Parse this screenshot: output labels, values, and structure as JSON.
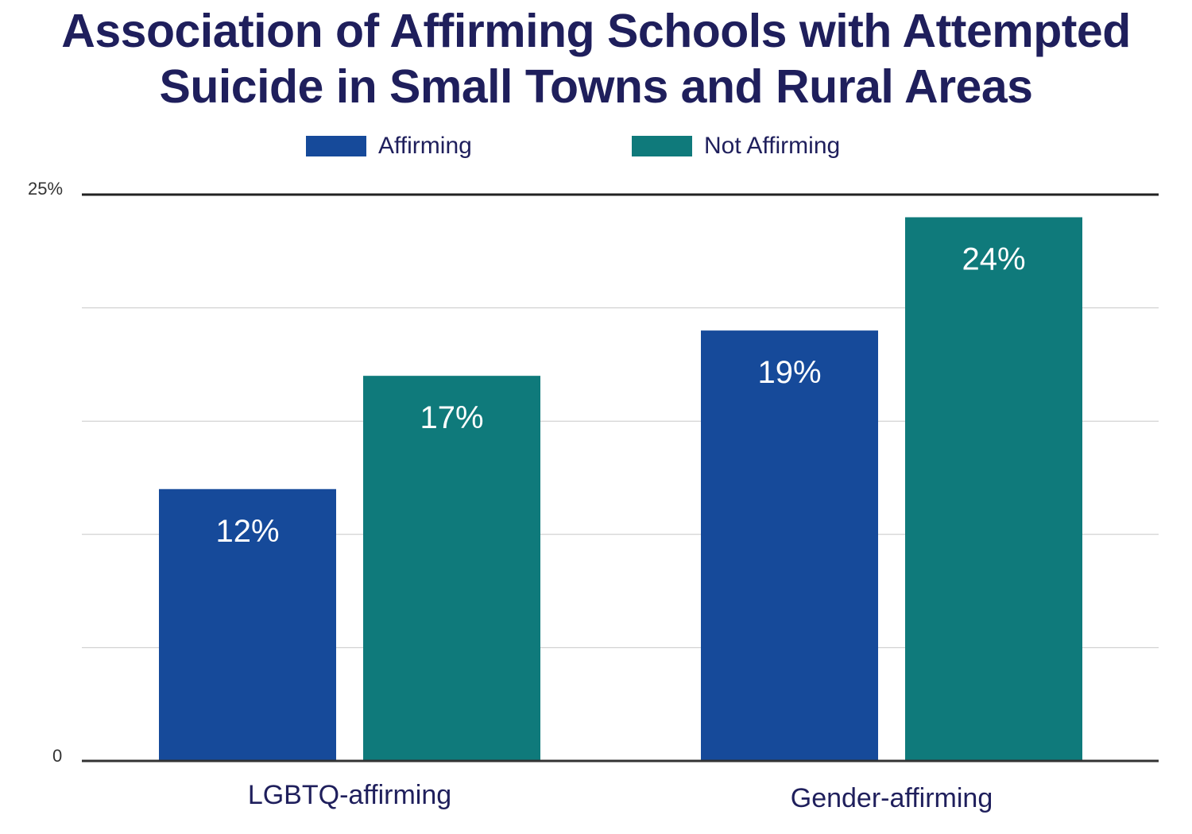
{
  "chart_data": {
    "type": "bar",
    "title": "Association of Affirming Schools with Attempted Suicide in Small Towns and Rural Areas",
    "title_lines": [
      "Association of Affirming Schools with Attempted",
      "Suicide in Small Towns and Rural Areas"
    ],
    "categories": [
      "LGBTQ-affirming",
      "Gender-affirming"
    ],
    "series": [
      {
        "name": "Affirming",
        "color": "#164a9a",
        "values": [
          12,
          19
        ],
        "labels": [
          "12%",
          "19%"
        ]
      },
      {
        "name": "Not Affirming",
        "color": "#0f7a7b",
        "values": [
          17,
          24
        ],
        "labels": [
          "17%",
          "24%"
        ]
      }
    ],
    "ylim": [
      0,
      25
    ],
    "y_tick_labels": {
      "top": "25%",
      "bottom": "0"
    },
    "gridlines": [
      5,
      10,
      15,
      20
    ],
    "grid": true,
    "legend_position": "top-center",
    "xlabel": "",
    "ylabel": ""
  }
}
